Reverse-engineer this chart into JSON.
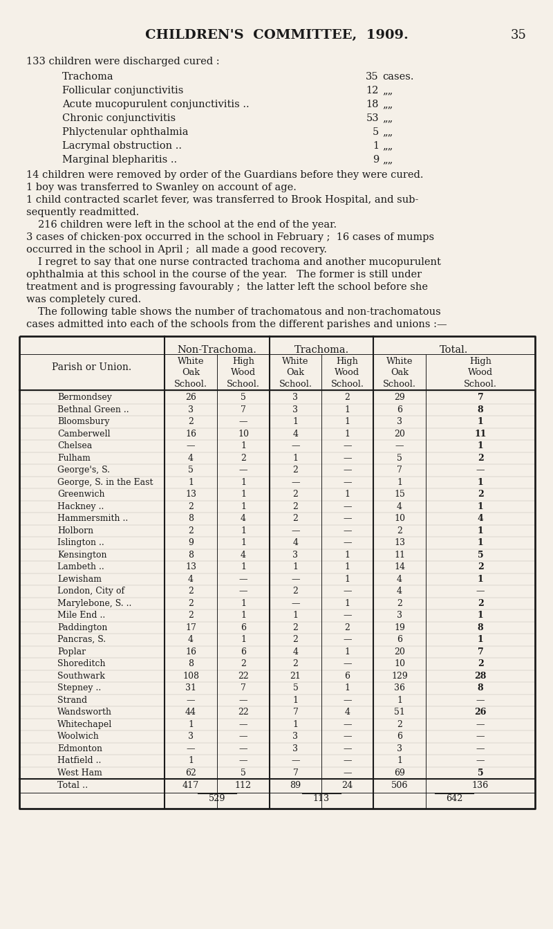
{
  "bg_color": "#f5f0e8",
  "page_title": "CHILDREN'S  COMMITTEE,  1909.",
  "page_number": "35",
  "discharge_items": [
    {
      "name": "Trachoma",
      "value": "35",
      "unit": "cases."
    },
    {
      "name": "Follicular conjunctivitis",
      "value": "12",
      "unit": "„„"
    },
    {
      "name": "Acute mucopurulent conjunctivitis ..",
      "value": "18",
      "unit": "„„"
    },
    {
      "name": "Chronic conjunctivitis",
      "value": "53",
      "unit": "„„"
    },
    {
      "name": "Phlyctenular ophthalmia",
      "value": "5",
      "unit": "„„"
    },
    {
      "name": "Lacrymal obstruction ..",
      "value": "1",
      "unit": "„„"
    },
    {
      "name": "Marginal blepharitis ..",
      "value": "9",
      "unit": "„„"
    }
  ],
  "para_lines": [
    {
      "text": "14 children were removed by order of the Guardians before they were cured.",
      "indent": false
    },
    {
      "text": "1 boy was transferred to Swanley on account of age.",
      "indent": false
    },
    {
      "text": "1 child contracted scarlet fever, was transferred to Brook Hospital, and sub-",
      "indent": false
    },
    {
      "text": "sequently readmitted.",
      "indent": false
    },
    {
      "text": "216 children were left in the school at the end of the year.",
      "indent": true
    },
    {
      "text": "3 cases of chicken-pox occurred in the school in February ;  16 cases of mumps",
      "indent": false
    },
    {
      "text": "occurred in the school in April ;  all made a good recovery.",
      "indent": false
    },
    {
      "text": "I regret to say that one nurse contracted trachoma and another mucopurulent",
      "indent": true
    },
    {
      "text": "ophthalmia at this school in the course of the year.   The former is still under",
      "indent": false
    },
    {
      "text": "treatment and is progressing favourably ;  the latter left the school before she",
      "indent": false
    },
    {
      "text": "was completely cured.",
      "indent": false
    },
    {
      "text": "The following table shows the number of trachomatous and non-trachomatous",
      "indent": true
    },
    {
      "text": "cases admitted into each of the schools from the different parishes and unions :—",
      "indent": false
    }
  ],
  "table": {
    "group_labels": [
      "Non-Trachoma.",
      "Trachoma.",
      "Total."
    ],
    "col_headers": [
      "White\nOak\nSchool.",
      "High\nWood\nSchool.",
      "White\nOak\nSchool.",
      "High\nWood\nSchool.",
      "White\nOak\nSchool.",
      "High\nWood\nSchool."
    ],
    "row_header": "Parish or Union.",
    "rows": [
      {
        "name": "Bermondsey",
        "vals": [
          26,
          5,
          3,
          2,
          29,
          7
        ]
      },
      {
        "name": "Bethnal Green ..",
        "vals": [
          3,
          7,
          3,
          1,
          6,
          8
        ]
      },
      {
        "name": "Bloomsbury",
        "vals": [
          2,
          0,
          1,
          1,
          3,
          1
        ]
      },
      {
        "name": "Camberwell",
        "vals": [
          16,
          10,
          4,
          1,
          20,
          11
        ]
      },
      {
        "name": "Chelsea",
        "vals": [
          0,
          1,
          0,
          0,
          0,
          1
        ]
      },
      {
        "name": "Fulham",
        "vals": [
          4,
          2,
          1,
          0,
          5,
          2
        ]
      },
      {
        "name": "George's, S.",
        "vals": [
          5,
          0,
          2,
          0,
          7,
          0
        ]
      },
      {
        "name": "George, S. in the East",
        "vals": [
          1,
          1,
          0,
          0,
          1,
          1
        ]
      },
      {
        "name": "Greenwich",
        "vals": [
          13,
          1,
          2,
          1,
          15,
          2
        ]
      },
      {
        "name": "Hackney ..",
        "vals": [
          2,
          1,
          2,
          0,
          4,
          1
        ]
      },
      {
        "name": "Hammersmith ..",
        "vals": [
          8,
          4,
          2,
          0,
          10,
          4
        ]
      },
      {
        "name": "Holborn",
        "vals": [
          2,
          1,
          0,
          0,
          2,
          1
        ]
      },
      {
        "name": "Islington ..",
        "vals": [
          9,
          1,
          4,
          0,
          13,
          1
        ]
      },
      {
        "name": "Kensington",
        "vals": [
          8,
          4,
          3,
          1,
          11,
          5
        ]
      },
      {
        "name": "Lambeth ..",
        "vals": [
          13,
          1,
          1,
          1,
          14,
          2
        ]
      },
      {
        "name": "Lewisham",
        "vals": [
          4,
          0,
          0,
          1,
          4,
          1
        ]
      },
      {
        "name": "London, City of",
        "vals": [
          2,
          0,
          2,
          0,
          4,
          0
        ]
      },
      {
        "name": "Marylebone, S. ..",
        "vals": [
          2,
          1,
          0,
          1,
          2,
          2
        ]
      },
      {
        "name": "Mile End ..",
        "vals": [
          2,
          1,
          1,
          0,
          3,
          1
        ]
      },
      {
        "name": "Paddington",
        "vals": [
          17,
          6,
          2,
          2,
          19,
          8
        ]
      },
      {
        "name": "Pancras, S.",
        "vals": [
          4,
          1,
          2,
          0,
          6,
          1
        ]
      },
      {
        "name": "Poplar",
        "vals": [
          16,
          6,
          4,
          1,
          20,
          7
        ]
      },
      {
        "name": "Shoreditch",
        "vals": [
          8,
          2,
          2,
          0,
          10,
          2
        ]
      },
      {
        "name": "Southwark",
        "vals": [
          108,
          22,
          21,
          6,
          129,
          28
        ]
      },
      {
        "name": "Stepney ..",
        "vals": [
          31,
          7,
          5,
          1,
          36,
          8
        ]
      },
      {
        "name": "Strand",
        "vals": [
          0,
          0,
          1,
          0,
          1,
          0
        ]
      },
      {
        "name": "Wandsworth",
        "vals": [
          44,
          22,
          7,
          4,
          51,
          26
        ]
      },
      {
        "name": "Whitechapel",
        "vals": [
          1,
          0,
          1,
          0,
          2,
          0
        ]
      },
      {
        "name": "Woolwich",
        "vals": [
          3,
          0,
          3,
          0,
          6,
          0
        ]
      },
      {
        "name": "Edmonton",
        "vals": [
          0,
          0,
          3,
          0,
          3,
          0
        ]
      },
      {
        "name": "Hatfield ..",
        "vals": [
          1,
          0,
          0,
          0,
          1,
          0
        ]
      },
      {
        "name": "West Ham",
        "vals": [
          62,
          5,
          7,
          0,
          69,
          5
        ]
      }
    ],
    "totals": [
      417,
      112,
      89,
      24,
      506,
      136
    ],
    "subtotals": [
      529,
      113,
      642
    ],
    "bold_last_col": [
      true,
      true,
      true,
      true,
      true,
      true,
      false,
      true,
      true,
      true,
      true,
      true,
      true,
      true,
      true,
      true,
      false,
      true,
      true,
      true,
      true,
      true,
      true,
      true,
      true,
      false,
      true,
      false,
      false,
      false,
      false,
      true
    ]
  },
  "text_color": "#1a1a1a",
  "serif_font": "DejaVu Serif"
}
